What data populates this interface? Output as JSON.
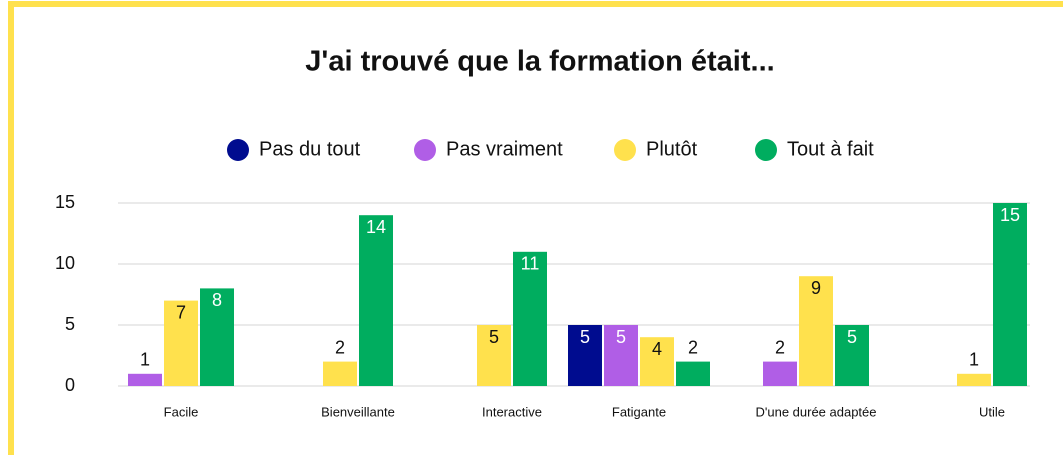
{
  "chart_data": {
    "type": "bar",
    "title": "J'ai trouvé que la formation était...",
    "categories": [
      "Facile",
      "Bienveillante",
      "Interactive",
      "Fatigante",
      "D'une durée adaptée",
      "Utile"
    ],
    "series": [
      {
        "name": "Pas du tout",
        "color": "#000c8f",
        "values": [
          null,
          null,
          null,
          5,
          null,
          null
        ]
      },
      {
        "name": "Pas vraiment",
        "color": "#b05ee6",
        "values": [
          1,
          null,
          null,
          5,
          2,
          null
        ]
      },
      {
        "name": "Plutôt",
        "color": "#ffe14d",
        "values": [
          7,
          2,
          5,
          4,
          9,
          1
        ]
      },
      {
        "name": "Tout à fait",
        "color": "#00ad5f",
        "values": [
          8,
          14,
          11,
          2,
          5,
          15
        ]
      }
    ],
    "ylim": [
      0,
      15
    ],
    "yticks": [
      0,
      5,
      10,
      15
    ],
    "grid": true,
    "legend": "top"
  }
}
